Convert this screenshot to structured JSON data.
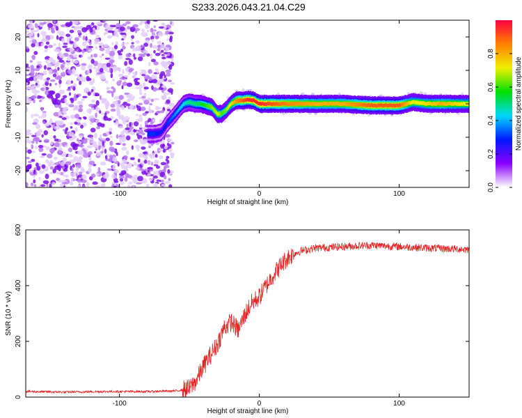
{
  "title": "S233.2026.043.21.04.C29",
  "chart_data": [
    {
      "type": "heatmap",
      "name": "spectrogram",
      "xlabel": "Height of straight line (km)",
      "ylabel": "Frequency (Hz)",
      "xlim": [
        -167,
        150
      ],
      "ylim": [
        -25,
        25
      ],
      "xticks": [
        {
          "v": -100,
          "label": "-100"
        },
        {
          "v": 0,
          "label": "0"
        },
        {
          "v": 100,
          "label": "100"
        }
      ],
      "yticks": [
        {
          "v": -20,
          "label": "-20"
        },
        {
          "v": -10,
          "label": "-10"
        },
        {
          "v": 0,
          "label": "0"
        },
        {
          "v": 10,
          "label": "10"
        },
        {
          "v": 20,
          "label": "20"
        }
      ],
      "noise_region": {
        "x_min": -167,
        "x_max": -62
      },
      "ridge": {
        "x": [
          -80,
          -75,
          -70,
          -66,
          -62,
          -58,
          -54,
          -50,
          -46,
          -42,
          -38,
          -34,
          -30,
          -27,
          -24,
          -20,
          -16,
          -12,
          -8,
          -4,
          0,
          20,
          40,
          60,
          80,
          100,
          110,
          120,
          130,
          150
        ],
        "freq": [
          -9,
          -9,
          -8.5,
          -6,
          -4,
          -2,
          0,
          0.5,
          0,
          0,
          -0.5,
          -1,
          -3,
          -3,
          -2,
          0,
          1,
          1,
          1.2,
          1,
          0,
          0,
          0,
          0,
          -0.5,
          -0.5,
          0.5,
          0,
          0,
          0
        ],
        "amplitude": [
          0.3,
          0.3,
          0.25,
          0.3,
          0.35,
          0.4,
          0.45,
          0.5,
          0.5,
          0.55,
          0.6,
          0.65,
          0.7,
          0.6,
          0.65,
          0.75,
          0.85,
          0.9,
          0.95,
          0.95,
          0.95,
          0.85,
          0.8,
          0.8,
          0.9,
          0.9,
          0.7,
          0.75,
          0.8,
          0.7
        ]
      },
      "colorbar": {
        "label": "Normalized spectral amplitude",
        "range": [
          0,
          1
        ],
        "ticks": [
          {
            "v": 0.0,
            "label": "0.0"
          },
          {
            "v": 0.2,
            "label": "0.2"
          },
          {
            "v": 0.4,
            "label": "0.4"
          },
          {
            "v": 0.6,
            "label": "0.6"
          },
          {
            "v": 0.8,
            "label": "0.8"
          }
        ],
        "stops": [
          "#ffffff",
          "#8a00ff",
          "#0018ff",
          "#00d8ff",
          "#00e000",
          "#f0f000",
          "#ff8000",
          "#ff0040"
        ]
      }
    },
    {
      "type": "line",
      "name": "snr",
      "xlabel": "Height of straight line (km)",
      "ylabel": "SNR (10 * v/v)",
      "xlim": [
        -167,
        150
      ],
      "ylim": [
        0,
        600
      ],
      "xticks": [
        {
          "v": -100,
          "label": "-100"
        },
        {
          "v": 0,
          "label": "0"
        },
        {
          "v": 100,
          "label": "100"
        }
      ],
      "yticks": [
        {
          "v": 0,
          "label": "0"
        },
        {
          "v": 200,
          "label": "200"
        },
        {
          "v": 400,
          "label": "400"
        },
        {
          "v": 600,
          "label": "600"
        }
      ],
      "color": "#e82020",
      "series": [
        {
          "name": "SNR",
          "x": [
            -167,
            -140,
            -110,
            -80,
            -60,
            -50,
            -45,
            -40,
            -35,
            -30,
            -25,
            -20,
            -15,
            -10,
            -5,
            0,
            5,
            10,
            15,
            20,
            25,
            30,
            40,
            60,
            80,
            100,
            120,
            150
          ],
          "values": [
            20,
            18,
            20,
            20,
            22,
            30,
            60,
            110,
            150,
            190,
            250,
            270,
            240,
            300,
            340,
            360,
            400,
            440,
            470,
            500,
            515,
            525,
            535,
            540,
            545,
            540,
            535,
            530
          ]
        }
      ]
    }
  ]
}
